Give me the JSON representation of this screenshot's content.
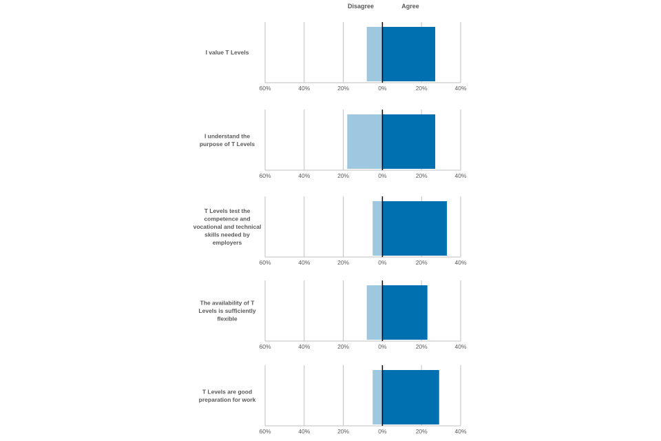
{
  "chart_data": {
    "type": "bar",
    "orientation": "horizontal-diverging",
    "legend": {
      "placement": "top",
      "entries": [
        "Disagree",
        "Agree"
      ]
    },
    "colors": {
      "disagree": "#9DC8E0",
      "agree": "#0070B0",
      "grid": "#BFBFBF",
      "zero_line": "#000000",
      "text": "#595959"
    },
    "xlim": [
      -60,
      40
    ],
    "ticks": [
      -60,
      -40,
      -20,
      0,
      20,
      40
    ],
    "tick_labels": [
      "60%",
      "40%",
      "20%",
      "0%",
      "20%",
      "40%"
    ],
    "grid": true,
    "categories": [
      "I value T Levels",
      "I understand the purpose of T Levels",
      "T Levels test the competence and vocational and technical skills needed by employers",
      "The availability of T Levels is sufficiently flexible",
      "T Levels are good preparation for work"
    ],
    "category_lines": [
      [
        "I value T Levels"
      ],
      [
        "I understand the",
        "purpose of T Levels"
      ],
      [
        "T Levels test the",
        "competence and",
        "vocational and technical",
        "skills needed by",
        "employers"
      ],
      [
        "The availability of T",
        "Levels is sufficiently",
        "flexible"
      ],
      [
        "T Levels are good",
        "preparation for work"
      ]
    ],
    "series": [
      {
        "name": "Disagree",
        "values": [
          8,
          18,
          5,
          8,
          5
        ]
      },
      {
        "name": "Agree",
        "values": [
          27,
          27,
          33,
          23,
          29
        ]
      }
    ]
  }
}
